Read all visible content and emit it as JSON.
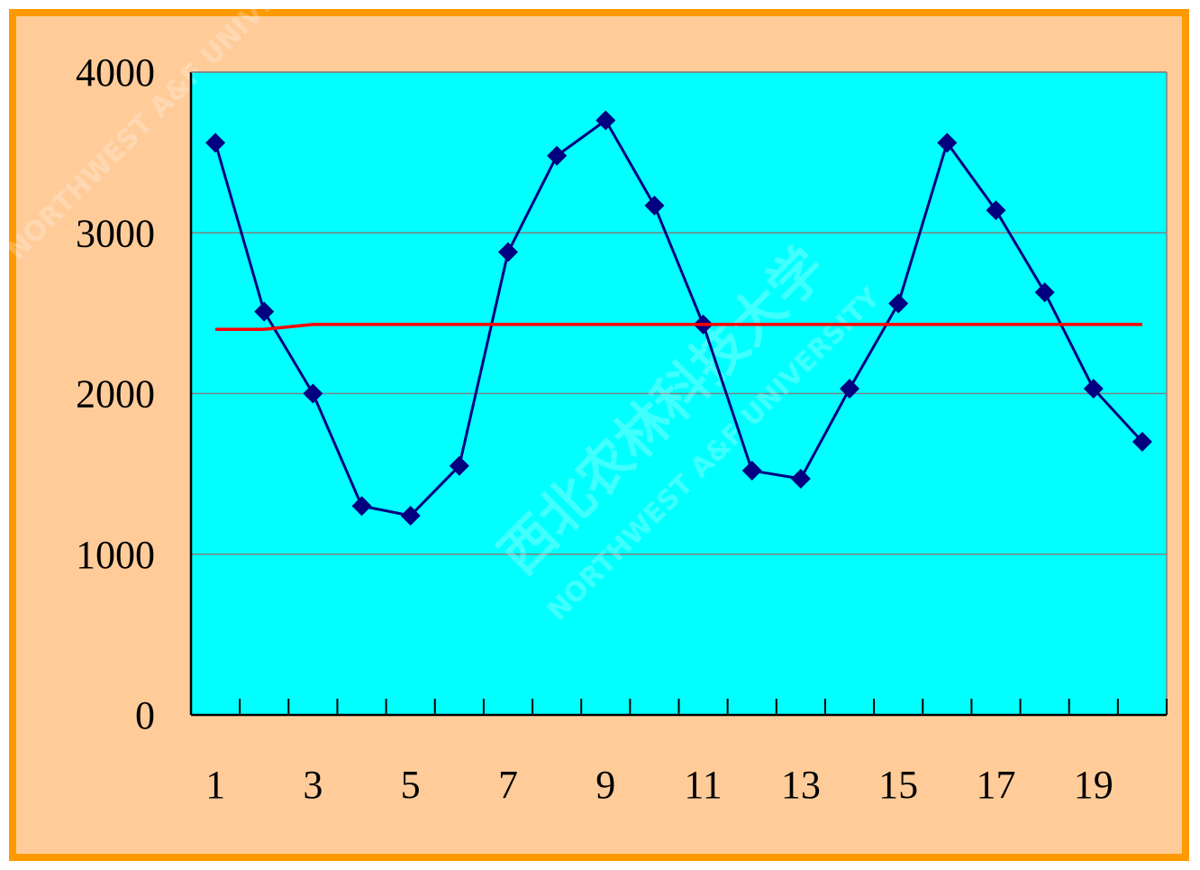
{
  "chart_data": {
    "type": "line",
    "title": "",
    "xlabel": "",
    "ylabel": "",
    "x": [
      1,
      2,
      3,
      4,
      5,
      6,
      7,
      8,
      9,
      10,
      11,
      12,
      13,
      14,
      15,
      16,
      17,
      18,
      19,
      20
    ],
    "x_tick_labels": [
      "1",
      "3",
      "5",
      "7",
      "9",
      "11",
      "13",
      "15",
      "17",
      "19"
    ],
    "y_tick_labels": [
      "0",
      "1000",
      "2000",
      "3000",
      "4000"
    ],
    "ylim": [
      0,
      4000
    ],
    "grid": true,
    "legend": "none",
    "series": [
      {
        "values": [
          3560,
          2510,
          2000,
          1300,
          1240,
          1550,
          2880,
          3480,
          3700,
          3170,
          2430,
          1520,
          1470,
          2030,
          2560,
          3560,
          3140,
          2630,
          2030,
          1700
        ],
        "color": "#000080",
        "marker": "diamond"
      },
      {
        "values": [
          2400,
          2400,
          2430,
          2430,
          2430,
          2430,
          2430,
          2430,
          2430,
          2430,
          2430,
          2430,
          2430,
          2430,
          2430,
          2430,
          2430,
          2430,
          2430,
          2430
        ],
        "color": "#FF0000",
        "marker": "none"
      }
    ]
  },
  "colors": {
    "frame_background": "#FFCC99",
    "frame_border": "#FF9900",
    "plot_background": "#00FFFF",
    "gridline": "#808080"
  },
  "watermark": {
    "text_en": "NORTHWEST A&F UNIVERSITY",
    "text_cn": "西北农林科技大学"
  }
}
